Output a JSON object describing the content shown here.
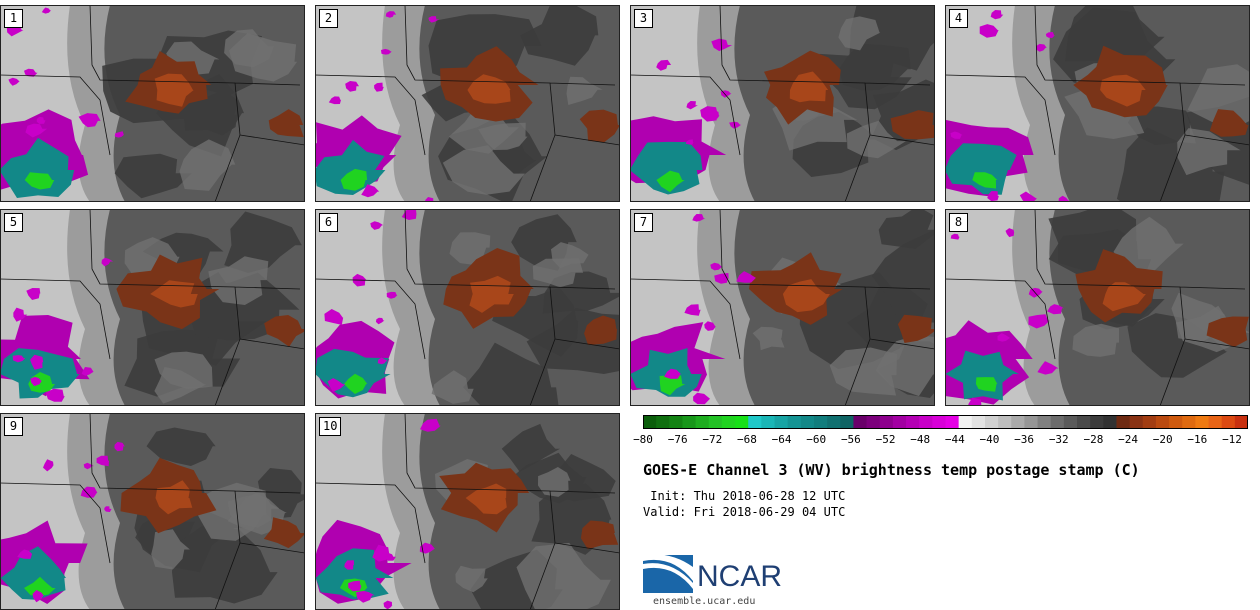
{
  "panels": [
    {
      "label": "1"
    },
    {
      "label": "2"
    },
    {
      "label": "3"
    },
    {
      "label": "4"
    },
    {
      "label": "5"
    },
    {
      "label": "6"
    },
    {
      "label": "7"
    },
    {
      "label": "8"
    },
    {
      "label": "9"
    },
    {
      "label": "10"
    }
  ],
  "colorbar": {
    "min": -80,
    "max": -10,
    "tick_labels": [
      "−80",
      "−76",
      "−72",
      "−68",
      "−64",
      "−60",
      "−56",
      "−52",
      "−48",
      "−44",
      "−40",
      "−36",
      "−32",
      "−28",
      "−24",
      "−20",
      "−16",
      "−12"
    ],
    "colors": [
      "#0b5e0b",
      "#0f6f0f",
      "#138313",
      "#18971a",
      "#1ead1f",
      "#23c225",
      "#20d320",
      "#18e018",
      "#1fc8c8",
      "#1ab6b6",
      "#17a4a4",
      "#149494",
      "#128888",
      "#117d7d",
      "#107070",
      "#0f6464",
      "#6a006a",
      "#7c007c",
      "#8e008e",
      "#a200a2",
      "#b400b4",
      "#c800c8",
      "#d800d8",
      "#e500e5",
      "#f2f2f2",
      "#e2e2e2",
      "#d0d0d0",
      "#bebebe",
      "#aaaaaa",
      "#969696",
      "#808080",
      "#6c6c6c",
      "#5a5a5a",
      "#4a4a4a",
      "#3c3c3c",
      "#323232",
      "#6e2a12",
      "#8a3314",
      "#a23d12",
      "#ba4a10",
      "#cf5a0e",
      "#df6a10",
      "#ef7a12",
      "#e86416",
      "#dc4a12",
      "#c83010"
    ]
  },
  "title": "GOES-E Channel 3 (WV) brightness temp postage stamp (C)",
  "init_line": " Init: Thu 2018-06-28 12 UTC",
  "valid_line": "Valid: Fri 2018-06-29 04 UTC",
  "logo_text": "NCAR",
  "site": "ensemble.ucar.edu"
}
